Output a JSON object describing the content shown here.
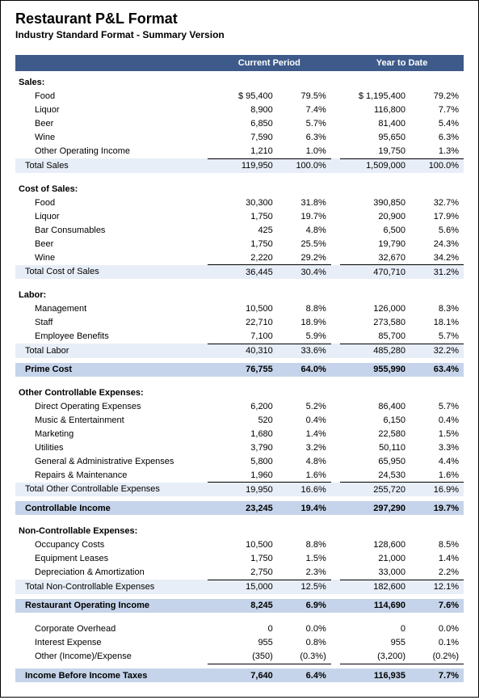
{
  "title": "Restaurant P&L Format",
  "subtitle": "Industry Standard Format - Summary Version",
  "colors": {
    "header_bg": "#3d5a8a",
    "light_row": "#e8eef7",
    "med_row": "#c5d4ea",
    "text": "#000000"
  },
  "columns": {
    "period1": "Current Period",
    "period2": "Year to Date"
  },
  "sections": [
    {
      "heading": "Sales:",
      "items": [
        {
          "label": "Food",
          "cp_amt": "$  95,400",
          "cp_pct": "79.5%",
          "ytd_amt": "$  1,195,400",
          "ytd_pct": "79.2%"
        },
        {
          "label": "Liquor",
          "cp_amt": "8,900",
          "cp_pct": "7.4%",
          "ytd_amt": "116,800",
          "ytd_pct": "7.7%"
        },
        {
          "label": "Beer",
          "cp_amt": "6,850",
          "cp_pct": "5.7%",
          "ytd_amt": "81,400",
          "ytd_pct": "5.4%"
        },
        {
          "label": "Wine",
          "cp_amt": "7,590",
          "cp_pct": "6.3%",
          "ytd_amt": "95,650",
          "ytd_pct": "6.3%"
        },
        {
          "label": "Other Operating Income",
          "cp_amt": "1,210",
          "cp_pct": "1.0%",
          "ytd_amt": "19,750",
          "ytd_pct": "1.3%",
          "underline": true
        }
      ],
      "subtotal": {
        "label": "Total Sales",
        "cp_amt": "119,950",
        "cp_pct": "100.0%",
        "ytd_amt": "1,509,000",
        "ytd_pct": "100.0%",
        "style": "light"
      }
    },
    {
      "heading": "Cost of Sales:",
      "items": [
        {
          "label": "Food",
          "cp_amt": "30,300",
          "cp_pct": "31.8%",
          "ytd_amt": "390,850",
          "ytd_pct": "32.7%"
        },
        {
          "label": "Liquor",
          "cp_amt": "1,750",
          "cp_pct": "19.7%",
          "ytd_amt": "20,900",
          "ytd_pct": "17.9%"
        },
        {
          "label": "Bar Consumables",
          "cp_amt": "425",
          "cp_pct": "4.8%",
          "ytd_amt": "6,500",
          "ytd_pct": "5.6%"
        },
        {
          "label": "Beer",
          "cp_amt": "1,750",
          "cp_pct": "25.5%",
          "ytd_amt": "19,790",
          "ytd_pct": "24.3%"
        },
        {
          "label": "Wine",
          "cp_amt": "2,220",
          "cp_pct": "29.2%",
          "ytd_amt": "32,670",
          "ytd_pct": "34.2%",
          "underline": true
        }
      ],
      "subtotal": {
        "label": "Total Cost of Sales",
        "cp_amt": "36,445",
        "cp_pct": "30.4%",
        "ytd_amt": "470,710",
        "ytd_pct": "31.2%",
        "style": "light"
      }
    },
    {
      "heading": "Labor:",
      "items": [
        {
          "label": "Management",
          "cp_amt": "10,500",
          "cp_pct": "8.8%",
          "ytd_amt": "126,000",
          "ytd_pct": "8.3%"
        },
        {
          "label": "Staff",
          "cp_amt": "22,710",
          "cp_pct": "18.9%",
          "ytd_amt": "273,580",
          "ytd_pct": "18.1%"
        },
        {
          "label": "Employee Benefits",
          "cp_amt": "7,100",
          "cp_pct": "5.9%",
          "ytd_amt": "85,700",
          "ytd_pct": "5.7%",
          "underline": true
        }
      ],
      "subtotal": {
        "label": "Total Labor",
        "cp_amt": "40,310",
        "cp_pct": "33.6%",
        "ytd_amt": "485,280",
        "ytd_pct": "32.2%",
        "style": "light"
      },
      "grand": {
        "label": "Prime Cost",
        "cp_amt": "76,755",
        "cp_pct": "64.0%",
        "ytd_amt": "955,990",
        "ytd_pct": "63.4%",
        "style": "med"
      }
    },
    {
      "heading": "Other Controllable Expenses:",
      "items": [
        {
          "label": "Direct Operating Expenses",
          "cp_amt": "6,200",
          "cp_pct": "5.2%",
          "ytd_amt": "86,400",
          "ytd_pct": "5.7%"
        },
        {
          "label": "Music & Entertainment",
          "cp_amt": "520",
          "cp_pct": "0.4%",
          "ytd_amt": "6,150",
          "ytd_pct": "0.4%"
        },
        {
          "label": "Marketing",
          "cp_amt": "1,680",
          "cp_pct": "1.4%",
          "ytd_amt": "22,580",
          "ytd_pct": "1.5%"
        },
        {
          "label": "Utilities",
          "cp_amt": "3,790",
          "cp_pct": "3.2%",
          "ytd_amt": "50,110",
          "ytd_pct": "3.3%"
        },
        {
          "label": "General & Administrative Expenses",
          "cp_amt": "5,800",
          "cp_pct": "4.8%",
          "ytd_amt": "65,950",
          "ytd_pct": "4.4%"
        },
        {
          "label": "Repairs & Maintenance",
          "cp_amt": "1,960",
          "cp_pct": "1.6%",
          "ytd_amt": "24,530",
          "ytd_pct": "1.6%",
          "underline": true
        }
      ],
      "subtotal": {
        "label": "Total Other Controllable Expenses",
        "cp_amt": "19,950",
        "cp_pct": "16.6%",
        "ytd_amt": "255,720",
        "ytd_pct": "16.9%",
        "style": "light"
      },
      "grand": {
        "label": "Controllable Income",
        "cp_amt": "23,245",
        "cp_pct": "19.4%",
        "ytd_amt": "297,290",
        "ytd_pct": "19.7%",
        "style": "med"
      }
    },
    {
      "heading": "Non-Controllable Expenses:",
      "items": [
        {
          "label": "Occupancy Costs",
          "cp_amt": "10,500",
          "cp_pct": "8.8%",
          "ytd_amt": "128,600",
          "ytd_pct": "8.5%"
        },
        {
          "label": "Equipment Leases",
          "cp_amt": "1,750",
          "cp_pct": "1.5%",
          "ytd_amt": "21,000",
          "ytd_pct": "1.4%"
        },
        {
          "label": "Depreciation & Amortization",
          "cp_amt": "2,750",
          "cp_pct": "2.3%",
          "ytd_amt": "33,000",
          "ytd_pct": "2.2%",
          "underline": true
        }
      ],
      "subtotal": {
        "label": "Total Non-Controllable Expenses",
        "cp_amt": "15,000",
        "cp_pct": "12.5%",
        "ytd_amt": "182,600",
        "ytd_pct": "12.1%",
        "style": "light"
      },
      "grand": {
        "label": "Restaurant Operating Income",
        "cp_amt": "8,245",
        "cp_pct": "6.9%",
        "ytd_amt": "114,690",
        "ytd_pct": "7.6%",
        "style": "med"
      }
    },
    {
      "items": [
        {
          "label": "Corporate Overhead",
          "cp_amt": "0",
          "cp_pct": "0.0%",
          "ytd_amt": "0",
          "ytd_pct": "0.0%"
        },
        {
          "label": "Interest Expense",
          "cp_amt": "955",
          "cp_pct": "0.8%",
          "ytd_amt": "955",
          "ytd_pct": "0.1%"
        },
        {
          "label": "Other (Income)/Expense",
          "cp_amt": "(350)",
          "cp_pct": "(0.3%)",
          "ytd_amt": "(3,200)",
          "ytd_pct": "(0.2%)",
          "underline": true
        }
      ],
      "grand": {
        "label": "Income Before Income Taxes",
        "cp_amt": "7,640",
        "cp_pct": "6.4%",
        "ytd_amt": "116,935",
        "ytd_pct": "7.7%",
        "style": "med"
      }
    }
  ]
}
